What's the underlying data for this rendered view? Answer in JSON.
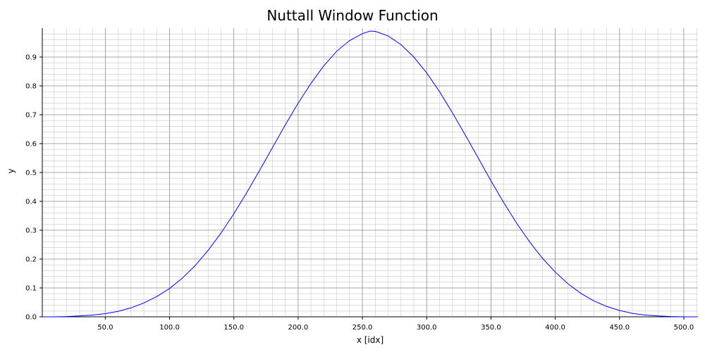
{
  "chart_data": {
    "type": "line",
    "title": "Nuttall Window Function",
    "xlabel": "x [idx]",
    "ylabel": "y",
    "xlim": [
      1,
      511
    ],
    "ylim": [
      0,
      1.0
    ],
    "xticks": [
      50,
      100,
      150,
      200,
      250,
      300,
      350,
      400,
      450,
      500
    ],
    "xtick_labels": [
      "50.0",
      "100.0",
      "150.0",
      "200.0",
      "250.0",
      "300.0",
      "350.0",
      "400.0",
      "450.0",
      "500.0"
    ],
    "yticks": [
      0.0,
      0.1,
      0.2,
      0.3,
      0.4,
      0.5,
      0.6,
      0.7,
      0.8,
      0.9
    ],
    "ytick_labels": [
      "0.0",
      "0.1",
      "0.2",
      "0.3",
      "0.4",
      "0.5",
      "0.6",
      "0.7",
      "0.8",
      "0.9"
    ],
    "grid": true,
    "series": [
      {
        "color": "#0000ff",
        "x": [
          1,
          10,
          20,
          30,
          40,
          50,
          60,
          70,
          80,
          90,
          100,
          110,
          120,
          130,
          140,
          150,
          160,
          170,
          180,
          190,
          200,
          210,
          220,
          230,
          240,
          250,
          256,
          260,
          270,
          280,
          290,
          300,
          310,
          320,
          330,
          340,
          350,
          360,
          370,
          380,
          390,
          400,
          410,
          420,
          430,
          440,
          450,
          460,
          470,
          480,
          490,
          500,
          511
        ],
        "y": [
          0.0,
          0.0,
          0.001,
          0.003,
          0.006,
          0.011,
          0.019,
          0.031,
          0.048,
          0.07,
          0.098,
          0.134,
          0.178,
          0.23,
          0.29,
          0.357,
          0.43,
          0.507,
          0.586,
          0.665,
          0.74,
          0.809,
          0.87,
          0.92,
          0.957,
          0.981,
          0.99,
          0.989,
          0.973,
          0.943,
          0.9,
          0.845,
          0.78,
          0.707,
          0.63,
          0.551,
          0.471,
          0.395,
          0.324,
          0.26,
          0.203,
          0.155,
          0.114,
          0.081,
          0.055,
          0.036,
          0.022,
          0.012,
          0.006,
          0.003,
          0.001,
          0.0,
          0.0
        ]
      }
    ]
  }
}
